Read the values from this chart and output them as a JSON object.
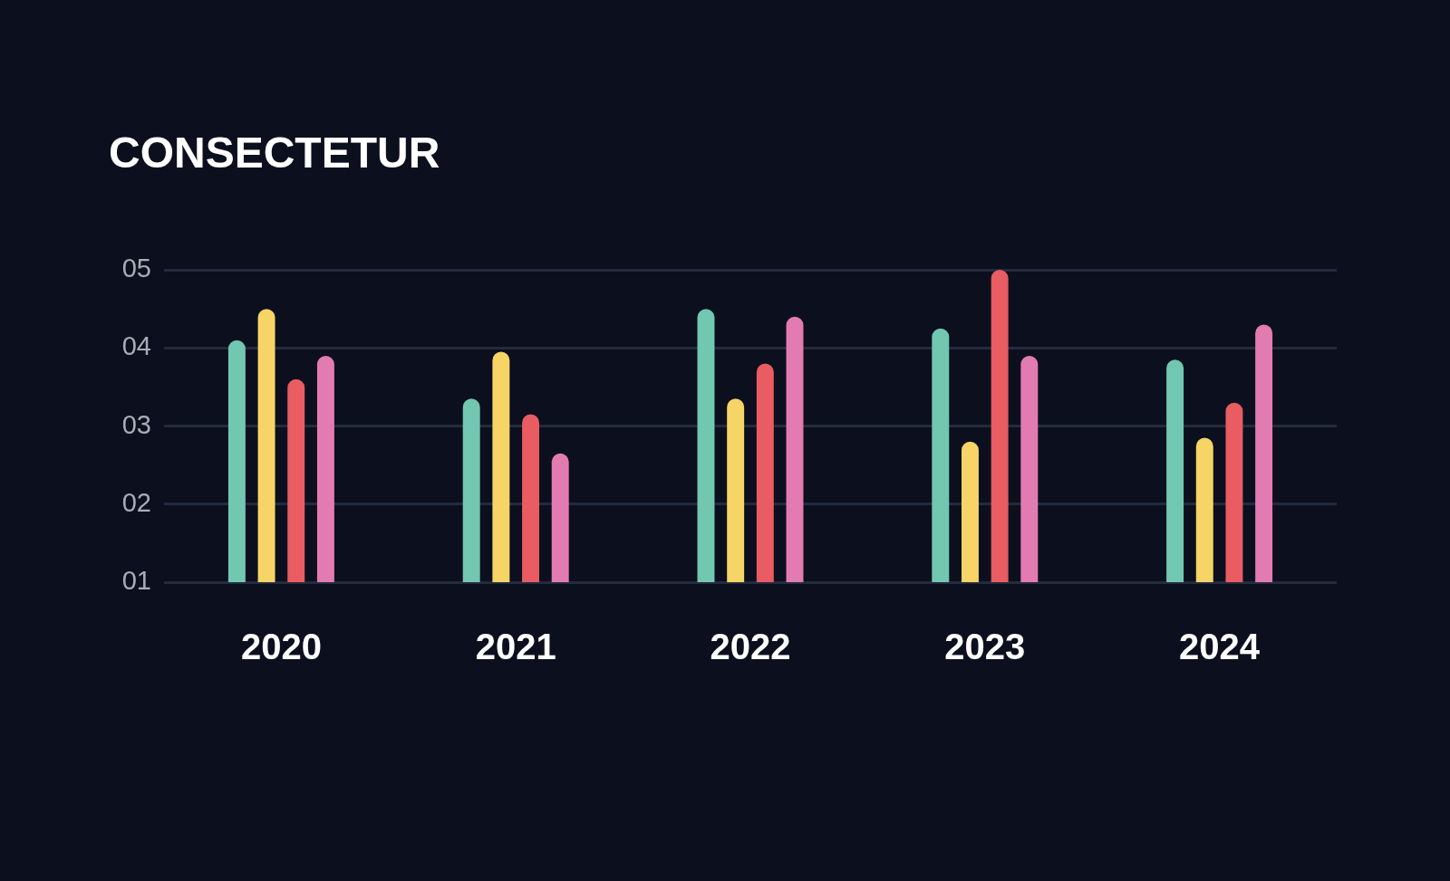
{
  "chart_data": {
    "type": "bar",
    "title": "CONSECTETUR",
    "categories": [
      "2020",
      "2021",
      "2022",
      "2023",
      "2024"
    ],
    "series": [
      {
        "color": "#72c7b0",
        "values": [
          4.1,
          3.35,
          4.5,
          4.25,
          3.85
        ]
      },
      {
        "color": "#f6d466",
        "values": [
          4.5,
          3.95,
          3.35,
          2.8,
          2.85
        ]
      },
      {
        "color": "#e85c62",
        "values": [
          3.6,
          3.15,
          3.8,
          5.0,
          3.3
        ]
      },
      {
        "color": "#e27bb1",
        "values": [
          3.9,
          2.65,
          4.4,
          3.9,
          4.3
        ]
      }
    ],
    "ylim": [
      1,
      5
    ],
    "yticks": [
      {
        "value": 1,
        "label": "01"
      },
      {
        "value": 2,
        "label": "02"
      },
      {
        "value": 3,
        "label": "03"
      },
      {
        "value": 4,
        "label": "04"
      },
      {
        "value": 5,
        "label": "05"
      }
    ],
    "grid": "y"
  }
}
